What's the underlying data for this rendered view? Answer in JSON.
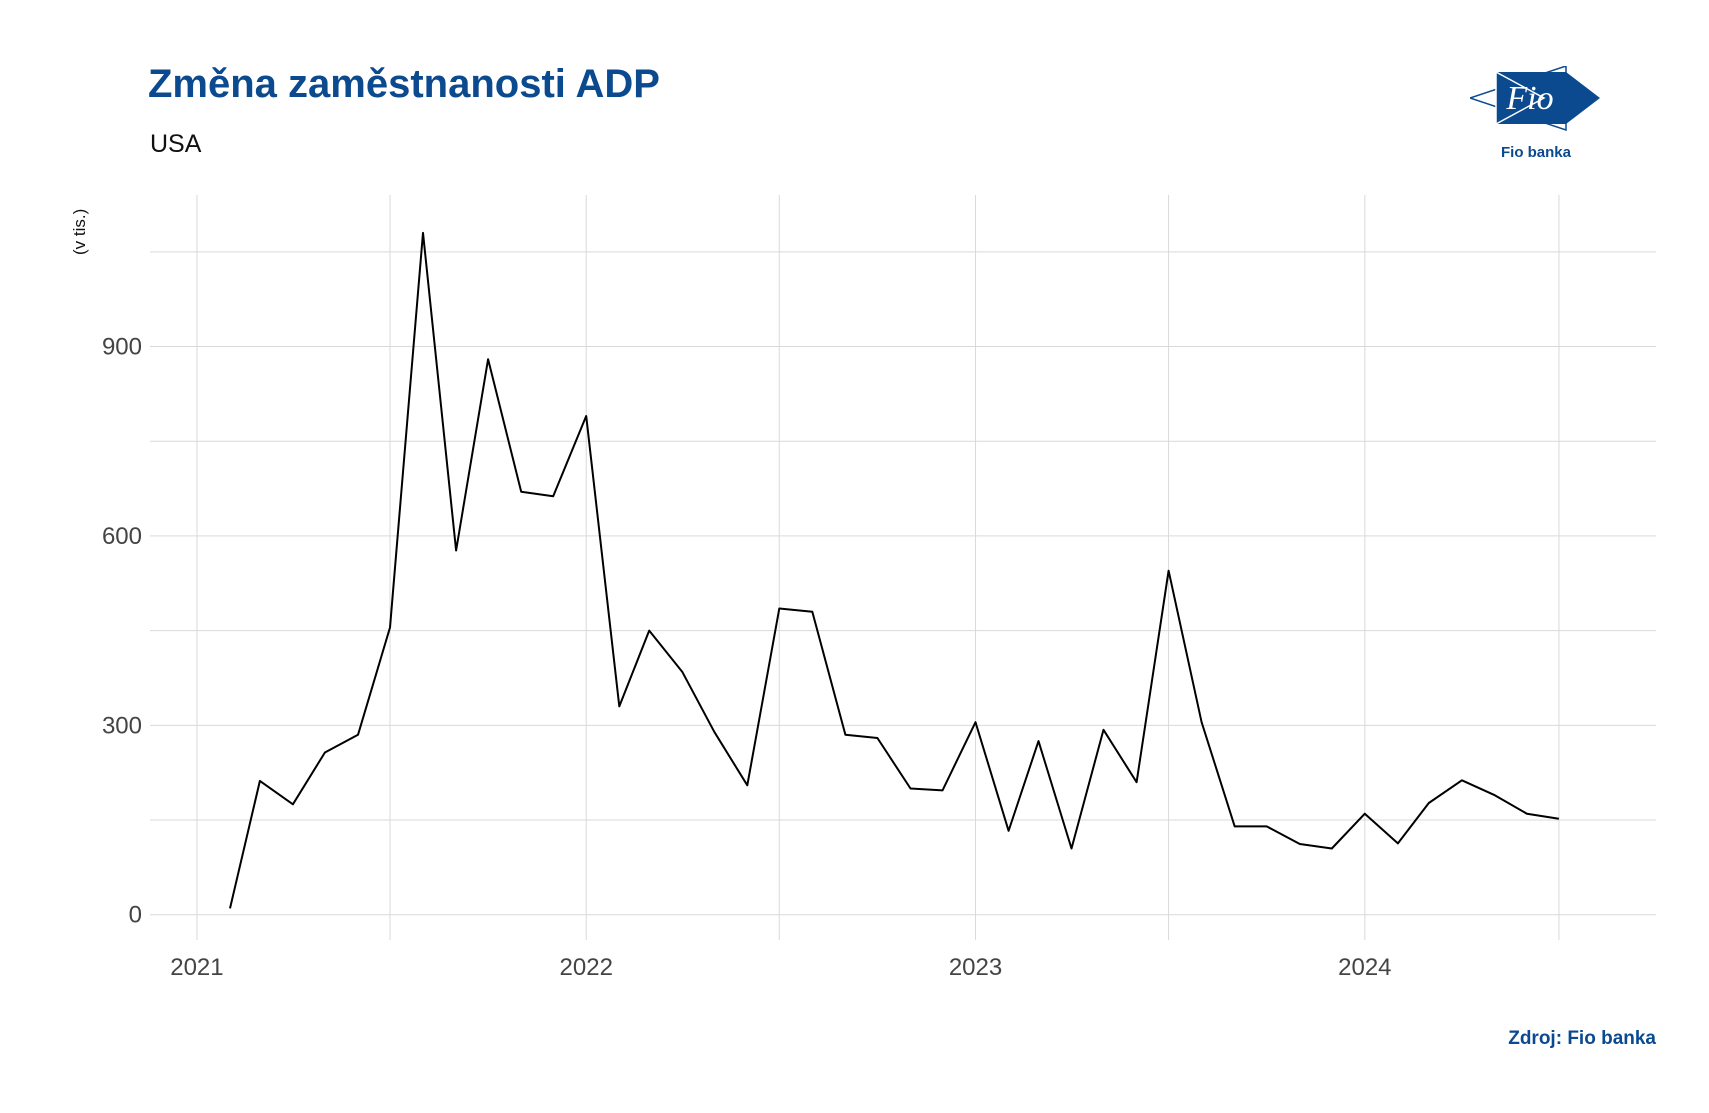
{
  "title": "Změna zaměstnanosti ADP",
  "subtitle": "USA",
  "logo": {
    "text": "Fio banka",
    "mark": "Fio"
  },
  "source": "Zdroj: Fio banka",
  "colors": {
    "brand": "#0b4a8f",
    "line": "#000000",
    "grid": "#d9d9d9"
  },
  "chart_data": {
    "type": "line",
    "ylabel": "(v tis.)",
    "xlabel": "",
    "ylim": [
      -40,
      1140
    ],
    "xlim": [
      "2020-11-18",
      "2024-09-30"
    ],
    "y_ticks": [
      0,
      300,
      600,
      900
    ],
    "y_minor": [
      150,
      450,
      750,
      1050
    ],
    "x_ticks": [
      {
        "date": "2021-01-01",
        "label": "2021"
      },
      {
        "date": "2022-01-01",
        "label": "2022"
      },
      {
        "date": "2023-01-01",
        "label": "2023"
      },
      {
        "date": "2024-01-01",
        "label": "2024"
      }
    ],
    "x_minor": [
      "2021-07-01",
      "2022-07-01",
      "2023-07-01",
      "2024-07-01"
    ],
    "grid": true,
    "series": [
      {
        "x": [
          "2021-02-01",
          "2021-03-01",
          "2021-04-01",
          "2021-05-01",
          "2021-06-01",
          "2021-07-01",
          "2021-08-01",
          "2021-09-01",
          "2021-10-01",
          "2021-11-01",
          "2021-12-01",
          "2022-01-01",
          "2022-02-01",
          "2022-03-01",
          "2022-04-01",
          "2022-05-01",
          "2022-06-01",
          "2022-07-01",
          "2022-08-01",
          "2022-09-01",
          "2022-10-01",
          "2022-11-01",
          "2022-12-01",
          "2023-01-01",
          "2023-02-01",
          "2023-03-01",
          "2023-04-01",
          "2023-05-01",
          "2023-06-01",
          "2023-07-01",
          "2023-08-01",
          "2023-09-01",
          "2023-10-01",
          "2023-11-01",
          "2023-12-01",
          "2024-01-01",
          "2024-02-01",
          "2024-03-01",
          "2024-04-01",
          "2024-05-01",
          "2024-06-01",
          "2024-07-01"
        ],
        "values": [
          10,
          212,
          175,
          257,
          285,
          455,
          1080,
          577,
          880,
          670,
          663,
          790,
          330,
          450,
          385,
          290,
          205,
          485,
          480,
          285,
          280,
          200,
          197,
          305,
          133,
          275,
          105,
          293,
          210,
          545,
          305,
          140,
          140,
          112,
          105,
          160,
          113,
          177,
          213,
          190,
          160,
          152
        ]
      }
    ]
  }
}
